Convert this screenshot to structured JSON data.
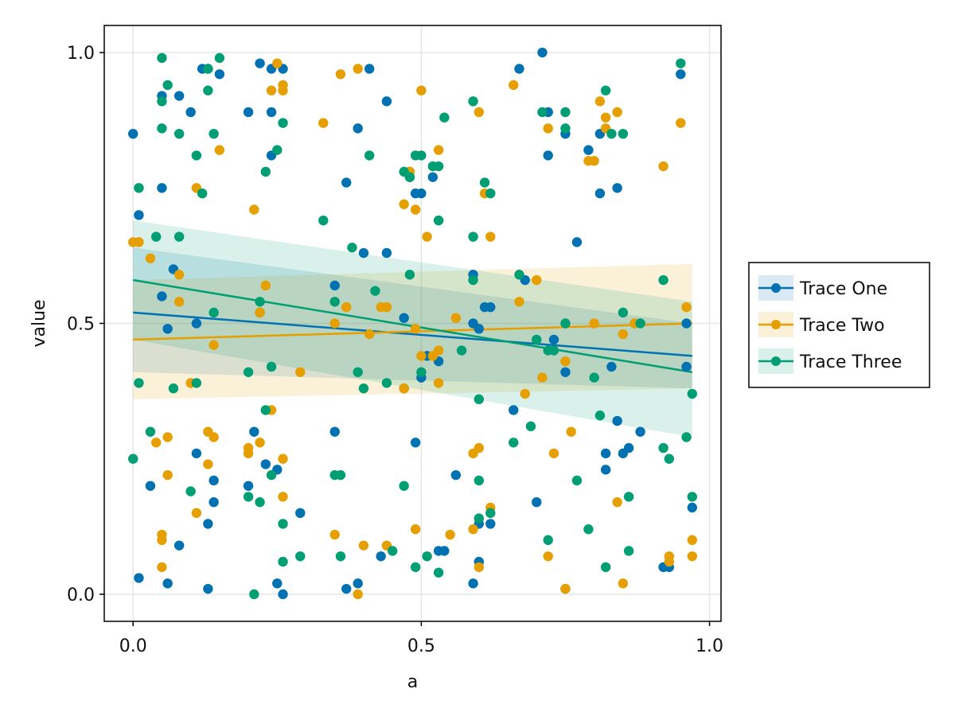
{
  "chart_data": {
    "type": "scatter",
    "xlabel": "a",
    "ylabel": "value",
    "xlim": [
      -0.05,
      1.02
    ],
    "ylim": [
      -0.05,
      1.05
    ],
    "x_ticks": [
      0.0,
      0.5,
      1.0
    ],
    "x_tick_labels": [
      "0.0",
      "0.5",
      "1.0"
    ],
    "y_ticks": [
      0.0,
      0.5,
      1.0
    ],
    "y_tick_labels": [
      "0.0",
      "0.5",
      "1.0"
    ],
    "grid": true,
    "legend_position": "right",
    "series": [
      {
        "name": "Trace One",
        "color": "#0072b2",
        "points": [
          [
            0.0,
            0.85
          ],
          [
            0.01,
            0.7
          ],
          [
            0.01,
            0.03
          ],
          [
            0.03,
            0.2
          ],
          [
            0.05,
            0.92
          ],
          [
            0.05,
            0.75
          ],
          [
            0.05,
            0.55
          ],
          [
            0.06,
            0.49
          ],
          [
            0.06,
            0.02
          ],
          [
            0.07,
            0.6
          ],
          [
            0.08,
            0.92
          ],
          [
            0.08,
            0.09
          ],
          [
            0.1,
            0.89
          ],
          [
            0.11,
            0.5
          ],
          [
            0.11,
            0.26
          ],
          [
            0.12,
            0.97
          ],
          [
            0.13,
            0.97
          ],
          [
            0.13,
            0.13
          ],
          [
            0.13,
            0.01
          ],
          [
            0.14,
            0.21
          ],
          [
            0.14,
            0.17
          ],
          [
            0.15,
            0.96
          ],
          [
            0.2,
            0.89
          ],
          [
            0.2,
            0.2
          ],
          [
            0.21,
            0.3
          ],
          [
            0.22,
            0.98
          ],
          [
            0.22,
            0.52
          ],
          [
            0.23,
            0.24
          ],
          [
            0.24,
            0.97
          ],
          [
            0.24,
            0.89
          ],
          [
            0.24,
            0.81
          ],
          [
            0.25,
            0.23
          ],
          [
            0.25,
            0.02
          ],
          [
            0.26,
            0.97
          ],
          [
            0.26,
            0.0
          ],
          [
            0.29,
            0.15
          ],
          [
            0.35,
            0.57
          ],
          [
            0.35,
            0.3
          ],
          [
            0.37,
            0.76
          ],
          [
            0.37,
            0.01
          ],
          [
            0.39,
            0.86
          ],
          [
            0.39,
            0.02
          ],
          [
            0.4,
            0.63
          ],
          [
            0.41,
            0.97
          ],
          [
            0.43,
            0.07
          ],
          [
            0.44,
            0.91
          ],
          [
            0.44,
            0.63
          ],
          [
            0.47,
            0.51
          ],
          [
            0.47,
            0.38
          ],
          [
            0.48,
            0.78
          ],
          [
            0.48,
            0.77
          ],
          [
            0.49,
            0.74
          ],
          [
            0.49,
            0.28
          ],
          [
            0.5,
            0.74
          ],
          [
            0.5,
            0.4
          ],
          [
            0.51,
            0.44
          ],
          [
            0.52,
            0.77
          ],
          [
            0.53,
            0.43
          ],
          [
            0.53,
            0.08
          ],
          [
            0.54,
            0.08
          ],
          [
            0.56,
            0.22
          ],
          [
            0.59,
            0.59
          ],
          [
            0.59,
            0.02
          ],
          [
            0.59,
            0.5
          ],
          [
            0.6,
            0.49
          ],
          [
            0.6,
            0.06
          ],
          [
            0.6,
            0.13
          ],
          [
            0.61,
            0.53
          ],
          [
            0.62,
            0.53
          ],
          [
            0.62,
            0.13
          ],
          [
            0.66,
            0.34
          ],
          [
            0.67,
            0.97
          ],
          [
            0.68,
            0.58
          ],
          [
            0.7,
            0.17
          ],
          [
            0.71,
            1.0
          ],
          [
            0.72,
            0.81
          ],
          [
            0.72,
            0.89
          ],
          [
            0.73,
            0.47
          ],
          [
            0.75,
            0.85
          ],
          [
            0.75,
            0.41
          ],
          [
            0.75,
            0.01
          ],
          [
            0.77,
            0.65
          ],
          [
            0.79,
            0.82
          ],
          [
            0.81,
            0.85
          ],
          [
            0.81,
            0.74
          ],
          [
            0.82,
            0.26
          ],
          [
            0.82,
            0.23
          ],
          [
            0.83,
            0.42
          ],
          [
            0.84,
            0.75
          ],
          [
            0.84,
            0.32
          ],
          [
            0.85,
            0.26
          ],
          [
            0.86,
            0.27
          ],
          [
            0.88,
            0.3
          ],
          [
            0.92,
            0.05
          ],
          [
            0.93,
            0.05
          ],
          [
            0.95,
            0.96
          ],
          [
            0.96,
            0.5
          ],
          [
            0.96,
            0.42
          ],
          [
            0.97,
            0.16
          ]
        ],
        "trend": {
          "x0": 0.0,
          "y0": 0.52,
          "x1": 0.97,
          "y1": 0.44
        },
        "band": {
          "lower": [
            0.41,
            0.38
          ],
          "upper": [
            0.64,
            0.5
          ],
          "x": [
            0.0,
            0.97
          ]
        }
      },
      {
        "name": "Trace Two",
        "color": "#e69f00",
        "points": [
          [
            0.0,
            0.65
          ],
          [
            0.01,
            0.65
          ],
          [
            0.01,
            0.75
          ],
          [
            0.03,
            0.62
          ],
          [
            0.04,
            0.28
          ],
          [
            0.05,
            0.11
          ],
          [
            0.05,
            0.1
          ],
          [
            0.05,
            0.05
          ],
          [
            0.06,
            0.22
          ],
          [
            0.06,
            0.29
          ],
          [
            0.08,
            0.59
          ],
          [
            0.08,
            0.54
          ],
          [
            0.1,
            0.39
          ],
          [
            0.11,
            0.15
          ],
          [
            0.11,
            0.75
          ],
          [
            0.12,
            0.74
          ],
          [
            0.13,
            0.24
          ],
          [
            0.13,
            0.3
          ],
          [
            0.14,
            0.29
          ],
          [
            0.14,
            0.46
          ],
          [
            0.15,
            0.82
          ],
          [
            0.2,
            0.26
          ],
          [
            0.2,
            0.27
          ],
          [
            0.21,
            0.71
          ],
          [
            0.22,
            0.52
          ],
          [
            0.22,
            0.28
          ],
          [
            0.23,
            0.57
          ],
          [
            0.24,
            0.93
          ],
          [
            0.24,
            0.34
          ],
          [
            0.25,
            0.98
          ],
          [
            0.26,
            0.94
          ],
          [
            0.26,
            0.93
          ],
          [
            0.26,
            0.25
          ],
          [
            0.26,
            0.18
          ],
          [
            0.29,
            0.41
          ],
          [
            0.33,
            0.87
          ],
          [
            0.35,
            0.11
          ],
          [
            0.35,
            0.5
          ],
          [
            0.36,
            0.96
          ],
          [
            0.37,
            0.53
          ],
          [
            0.39,
            0.97
          ],
          [
            0.39,
            0.0
          ],
          [
            0.4,
            0.09
          ],
          [
            0.41,
            0.48
          ],
          [
            0.43,
            0.53
          ],
          [
            0.44,
            0.53
          ],
          [
            0.44,
            0.09
          ],
          [
            0.47,
            0.72
          ],
          [
            0.47,
            0.38
          ],
          [
            0.48,
            0.78
          ],
          [
            0.49,
            0.71
          ],
          [
            0.49,
            0.12
          ],
          [
            0.49,
            0.49
          ],
          [
            0.5,
            0.93
          ],
          [
            0.5,
            0.44
          ],
          [
            0.51,
            0.66
          ],
          [
            0.52,
            0.44
          ],
          [
            0.53,
            0.82
          ],
          [
            0.53,
            0.45
          ],
          [
            0.53,
            0.39
          ],
          [
            0.55,
            0.11
          ],
          [
            0.56,
            0.51
          ],
          [
            0.59,
            0.26
          ],
          [
            0.59,
            0.12
          ],
          [
            0.6,
            0.27
          ],
          [
            0.6,
            0.89
          ],
          [
            0.6,
            0.05
          ],
          [
            0.61,
            0.74
          ],
          [
            0.62,
            0.66
          ],
          [
            0.62,
            0.16
          ],
          [
            0.66,
            0.94
          ],
          [
            0.67,
            0.54
          ],
          [
            0.68,
            0.37
          ],
          [
            0.7,
            0.58
          ],
          [
            0.71,
            0.4
          ],
          [
            0.72,
            0.86
          ],
          [
            0.72,
            0.07
          ],
          [
            0.73,
            0.26
          ],
          [
            0.75,
            0.43
          ],
          [
            0.75,
            0.01
          ],
          [
            0.76,
            0.3
          ],
          [
            0.79,
            0.8
          ],
          [
            0.8,
            0.5
          ],
          [
            0.8,
            0.8
          ],
          [
            0.81,
            0.91
          ],
          [
            0.82,
            0.86
          ],
          [
            0.82,
            0.88
          ],
          [
            0.84,
            0.89
          ],
          [
            0.84,
            0.17
          ],
          [
            0.85,
            0.48
          ],
          [
            0.85,
            0.02
          ],
          [
            0.87,
            0.5
          ],
          [
            0.92,
            0.79
          ],
          [
            0.93,
            0.07
          ],
          [
            0.93,
            0.06
          ],
          [
            0.95,
            0.87
          ],
          [
            0.96,
            0.53
          ],
          [
            0.97,
            0.1
          ],
          [
            0.97,
            0.07
          ]
        ],
        "trend": {
          "x0": 0.0,
          "y0": 0.47,
          "x1": 0.97,
          "y1": 0.5
        },
        "band": {
          "lower": [
            0.36,
            0.38
          ],
          "upper": [
            0.58,
            0.61
          ],
          "x": [
            0.0,
            0.97
          ]
        }
      },
      {
        "name": "Trace Three",
        "color": "#009e73",
        "points": [
          [
            0.0,
            0.25
          ],
          [
            0.01,
            0.75
          ],
          [
            0.01,
            0.39
          ],
          [
            0.03,
            0.3
          ],
          [
            0.04,
            0.66
          ],
          [
            0.05,
            0.86
          ],
          [
            0.05,
            0.91
          ],
          [
            0.05,
            0.99
          ],
          [
            0.06,
            0.94
          ],
          [
            0.07,
            0.38
          ],
          [
            0.08,
            0.85
          ],
          [
            0.08,
            0.66
          ],
          [
            0.1,
            0.19
          ],
          [
            0.11,
            0.81
          ],
          [
            0.11,
            0.39
          ],
          [
            0.12,
            0.74
          ],
          [
            0.13,
            0.93
          ],
          [
            0.13,
            0.97
          ],
          [
            0.14,
            0.85
          ],
          [
            0.14,
            0.52
          ],
          [
            0.15,
            0.99
          ],
          [
            0.2,
            0.41
          ],
          [
            0.2,
            0.18
          ],
          [
            0.21,
            0.0
          ],
          [
            0.22,
            0.54
          ],
          [
            0.22,
            0.17
          ],
          [
            0.23,
            0.34
          ],
          [
            0.23,
            0.78
          ],
          [
            0.24,
            0.22
          ],
          [
            0.24,
            0.42
          ],
          [
            0.25,
            0.82
          ],
          [
            0.26,
            0.87
          ],
          [
            0.26,
            0.13
          ],
          [
            0.26,
            0.06
          ],
          [
            0.29,
            0.07
          ],
          [
            0.33,
            0.69
          ],
          [
            0.35,
            0.54
          ],
          [
            0.35,
            0.22
          ],
          [
            0.36,
            0.22
          ],
          [
            0.36,
            0.07
          ],
          [
            0.38,
            0.64
          ],
          [
            0.39,
            0.41
          ],
          [
            0.4,
            0.38
          ],
          [
            0.41,
            0.81
          ],
          [
            0.42,
            0.56
          ],
          [
            0.44,
            0.39
          ],
          [
            0.45,
            0.08
          ],
          [
            0.47,
            0.2
          ],
          [
            0.47,
            0.78
          ],
          [
            0.48,
            0.59
          ],
          [
            0.48,
            0.77
          ],
          [
            0.49,
            0.81
          ],
          [
            0.49,
            0.05
          ],
          [
            0.5,
            0.81
          ],
          [
            0.5,
            0.41
          ],
          [
            0.51,
            0.07
          ],
          [
            0.52,
            0.79
          ],
          [
            0.53,
            0.69
          ],
          [
            0.53,
            0.79
          ],
          [
            0.53,
            0.04
          ],
          [
            0.54,
            0.88
          ],
          [
            0.57,
            0.45
          ],
          [
            0.59,
            0.91
          ],
          [
            0.59,
            0.66
          ],
          [
            0.59,
            0.58
          ],
          [
            0.6,
            0.14
          ],
          [
            0.6,
            0.36
          ],
          [
            0.6,
            0.21
          ],
          [
            0.61,
            0.76
          ],
          [
            0.62,
            0.74
          ],
          [
            0.62,
            0.15
          ],
          [
            0.66,
            0.28
          ],
          [
            0.67,
            0.59
          ],
          [
            0.69,
            0.31
          ],
          [
            0.7,
            0.47
          ],
          [
            0.71,
            0.89
          ],
          [
            0.72,
            0.45
          ],
          [
            0.72,
            0.1
          ],
          [
            0.73,
            0.45
          ],
          [
            0.75,
            0.89
          ],
          [
            0.75,
            0.86
          ],
          [
            0.75,
            0.5
          ],
          [
            0.77,
            0.21
          ],
          [
            0.79,
            0.12
          ],
          [
            0.8,
            0.4
          ],
          [
            0.81,
            0.33
          ],
          [
            0.82,
            0.93
          ],
          [
            0.82,
            0.05
          ],
          [
            0.83,
            0.85
          ],
          [
            0.85,
            0.85
          ],
          [
            0.85,
            0.52
          ],
          [
            0.86,
            0.18
          ],
          [
            0.86,
            0.08
          ],
          [
            0.88,
            0.5
          ],
          [
            0.92,
            0.27
          ],
          [
            0.92,
            0.58
          ],
          [
            0.93,
            0.25
          ],
          [
            0.95,
            0.98
          ],
          [
            0.96,
            0.29
          ],
          [
            0.97,
            0.37
          ],
          [
            0.97,
            0.18
          ]
        ],
        "trend": {
          "x0": 0.0,
          "y0": 0.58,
          "x1": 0.97,
          "y1": 0.41
        },
        "band": {
          "lower": [
            0.47,
            0.29
          ],
          "upper": [
            0.69,
            0.54
          ],
          "x": [
            0.0,
            0.97
          ]
        }
      }
    ]
  }
}
